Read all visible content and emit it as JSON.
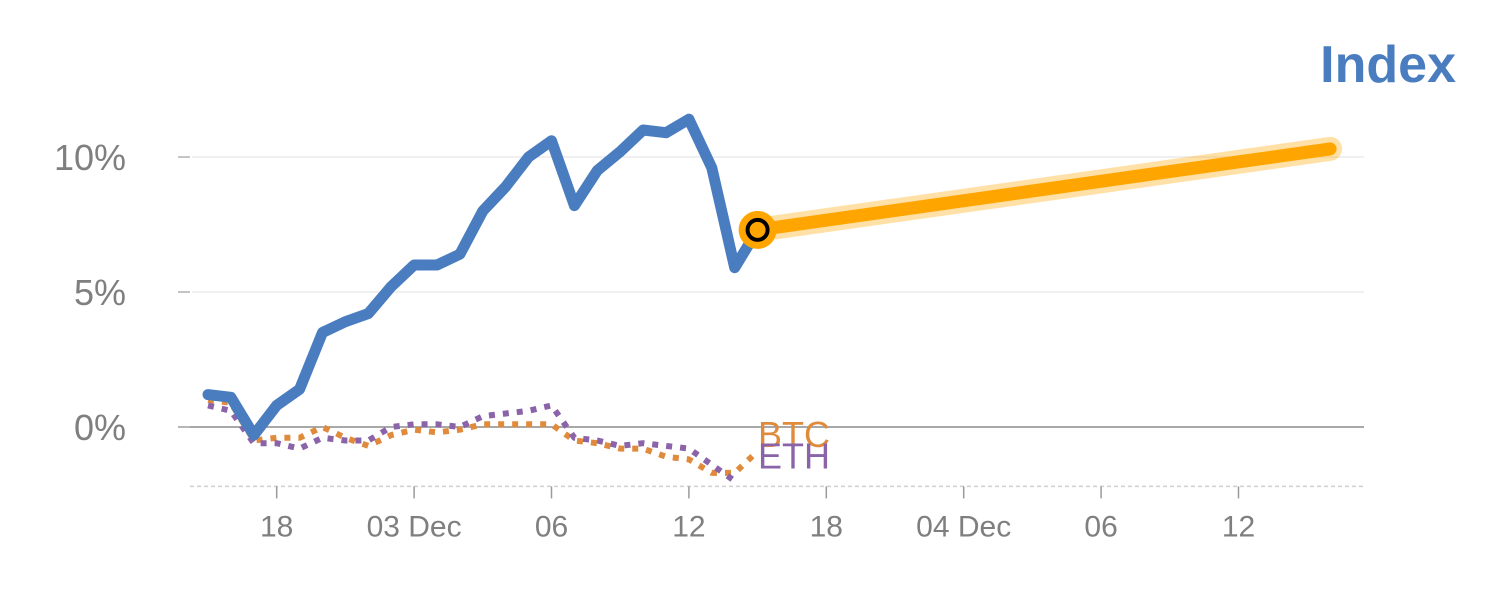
{
  "chart_data": {
    "type": "line",
    "title": "Index",
    "xlabel": "",
    "ylabel": "",
    "ylim": [
      -2.2,
      12
    ],
    "y_ticks": [
      {
        "value": 0,
        "label": "0%"
      },
      {
        "value": 5,
        "label": "5%"
      },
      {
        "value": 10,
        "label": "10%"
      }
    ],
    "x_ticks": [
      {
        "index": 3,
        "label": "18"
      },
      {
        "index": 9,
        "label": "03 Dec"
      },
      {
        "index": 15,
        "label": "06"
      },
      {
        "index": 21,
        "label": "12"
      },
      {
        "index": 27,
        "label": "18"
      },
      {
        "index": 33,
        "label": "04 Dec"
      },
      {
        "index": 39,
        "label": "06"
      },
      {
        "index": 45,
        "label": "12"
      }
    ],
    "grid": true,
    "legend": "none",
    "colors": {
      "index": "#4a7dbf",
      "projection": "#ffa500",
      "btc": "#e08a3c",
      "eth": "#8a63a8",
      "title": "#4a7dbf",
      "zero_line": "#8c8c8c",
      "grid": "#e6e6e6"
    },
    "series": [
      {
        "key": "index",
        "style": "solid",
        "x": [
          0,
          1,
          2,
          3,
          4,
          5,
          6,
          7,
          8,
          9,
          10,
          11,
          12,
          13,
          14,
          15,
          16,
          17,
          18,
          19,
          20,
          21,
          22,
          23,
          24
        ],
        "values": [
          1.2,
          1.1,
          -0.3,
          0.8,
          1.4,
          3.5,
          3.9,
          4.2,
          5.2,
          6.0,
          6.0,
          6.4,
          8.0,
          8.9,
          10.0,
          10.6,
          8.2,
          9.5,
          10.2,
          11.0,
          10.9,
          11.4,
          9.6,
          5.9,
          7.3
        ]
      },
      {
        "key": "projection",
        "style": "projection",
        "x": [
          24,
          49
        ],
        "values": [
          7.3,
          10.3
        ]
      },
      {
        "name": "BTC",
        "key": "btc",
        "style": "dotted",
        "x": [
          0,
          1,
          2,
          3,
          4,
          5,
          6,
          7,
          8,
          9,
          10,
          11,
          12,
          13,
          14,
          15,
          16,
          17,
          18,
          19,
          20,
          21,
          22,
          23,
          24
        ],
        "values": [
          1.0,
          0.9,
          -0.5,
          -0.4,
          -0.4,
          0.0,
          -0.4,
          -0.7,
          -0.3,
          -0.1,
          -0.2,
          -0.1,
          0.1,
          0.1,
          0.1,
          0.1,
          -0.5,
          -0.6,
          -0.8,
          -0.8,
          -1.1,
          -1.2,
          -1.7,
          -1.7,
          -0.9
        ]
      },
      {
        "name": "ETH",
        "key": "eth",
        "style": "dotted",
        "x": [
          0,
          1,
          2,
          3,
          4,
          5,
          6,
          7,
          8,
          9,
          10,
          11,
          12,
          13,
          14,
          15,
          16,
          17,
          18,
          19,
          20,
          21,
          22,
          23
        ],
        "values": [
          0.8,
          0.6,
          -0.6,
          -0.6,
          -0.8,
          -0.4,
          -0.5,
          -0.5,
          0.0,
          0.1,
          0.1,
          0.0,
          0.4,
          0.5,
          0.6,
          0.8,
          -0.4,
          -0.5,
          -0.7,
          -0.6,
          -0.7,
          -0.8,
          -1.4,
          -2.0
        ]
      }
    ],
    "marker": {
      "x": 24,
      "value": 7.3
    }
  }
}
